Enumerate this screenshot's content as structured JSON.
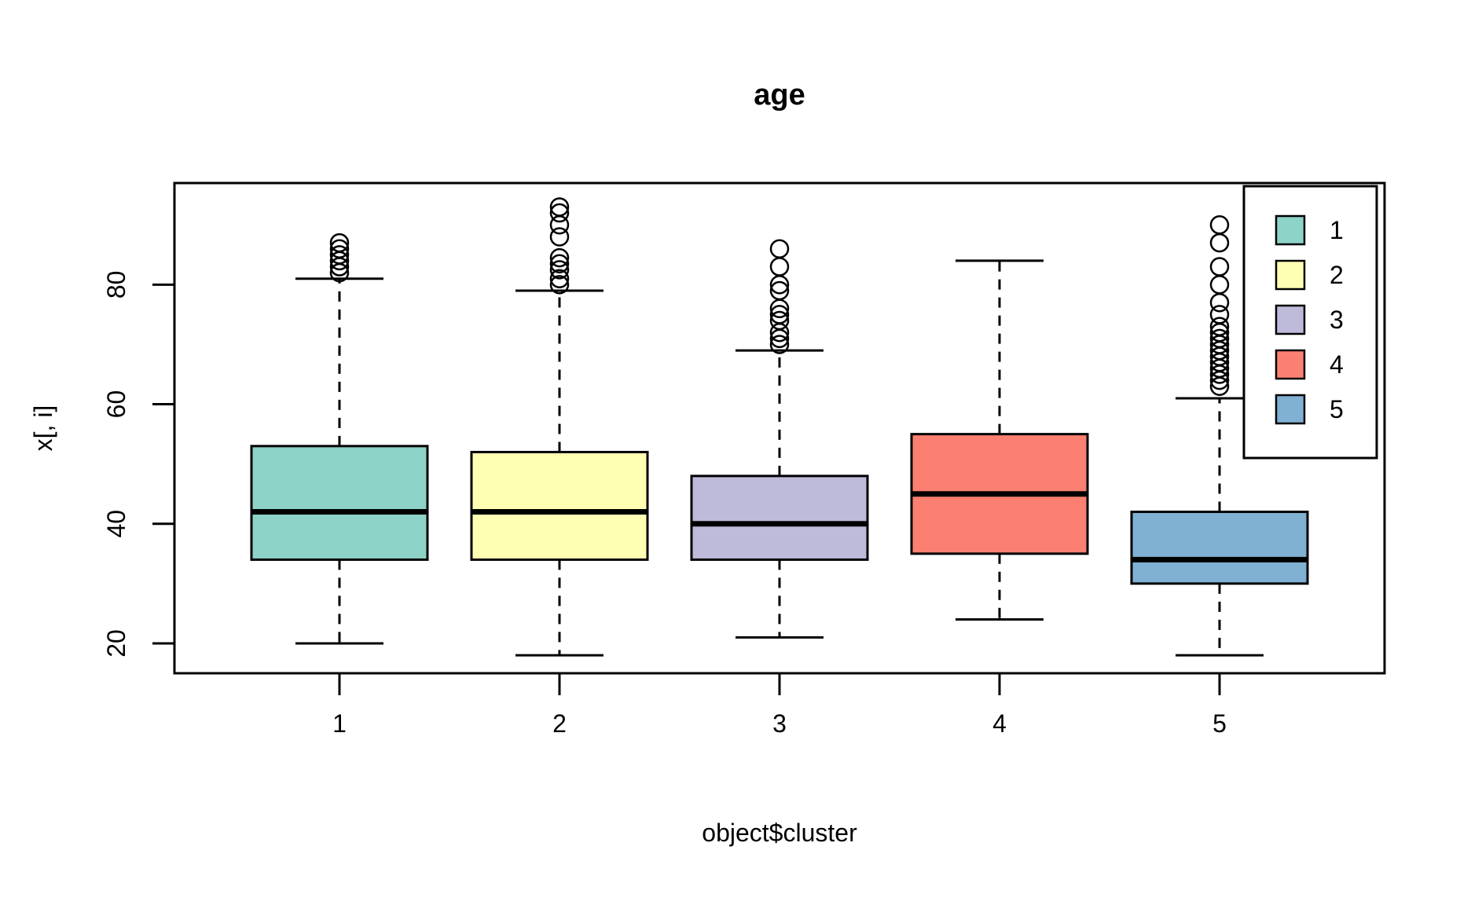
{
  "chart_data": {
    "type": "boxplot",
    "title": "age",
    "xlabel": "object$cluster",
    "ylabel": "x[, i]",
    "categories": [
      "1",
      "2",
      "3",
      "4",
      "5"
    ],
    "ylim": [
      15,
      97
    ],
    "yticks": [
      20,
      40,
      60,
      80
    ],
    "grid": false,
    "background": "#ffffff",
    "box_border_color": "#000000",
    "legend": {
      "position": "top-right",
      "entries": [
        {
          "label": "1",
          "color": "#8DD3C7"
        },
        {
          "label": "2",
          "color": "#FFFFB3"
        },
        {
          "label": "3",
          "color": "#BEBADA"
        },
        {
          "label": "4",
          "color": "#FB8072"
        },
        {
          "label": "5",
          "color": "#80B1D3"
        }
      ]
    },
    "series": [
      {
        "name": "1",
        "color": "#8DD3C7",
        "whisker_low": 20,
        "q1": 34,
        "median": 42,
        "q3": 53,
        "whisker_high": 81,
        "outliers": [
          82,
          83,
          84,
          85,
          86,
          87
        ]
      },
      {
        "name": "2",
        "color": "#FFFFB3",
        "whisker_low": 18,
        "q1": 34,
        "median": 42,
        "q3": 52,
        "whisker_high": 79,
        "outliers": [
          80,
          81,
          82.5,
          83.5,
          84.5,
          88,
          90,
          92,
          93
        ]
      },
      {
        "name": "3",
        "color": "#BEBADA",
        "whisker_low": 21,
        "q1": 34,
        "median": 40,
        "q3": 48,
        "whisker_high": 69,
        "outliers": [
          70,
          71,
          72,
          74,
          75,
          76,
          79,
          80,
          83,
          86
        ]
      },
      {
        "name": "4",
        "color": "#FB8072",
        "whisker_low": 24,
        "q1": 35,
        "median": 45,
        "q3": 55,
        "whisker_high": 84,
        "outliers": []
      },
      {
        "name": "5",
        "color": "#80B1D3",
        "whisker_low": 18,
        "q1": 30,
        "median": 34,
        "q3": 42,
        "whisker_high": 61,
        "outliers": [
          63,
          64,
          65,
          66,
          67,
          68,
          69,
          70,
          71,
          72,
          73,
          75,
          77,
          80,
          83,
          87,
          90
        ]
      }
    ]
  }
}
